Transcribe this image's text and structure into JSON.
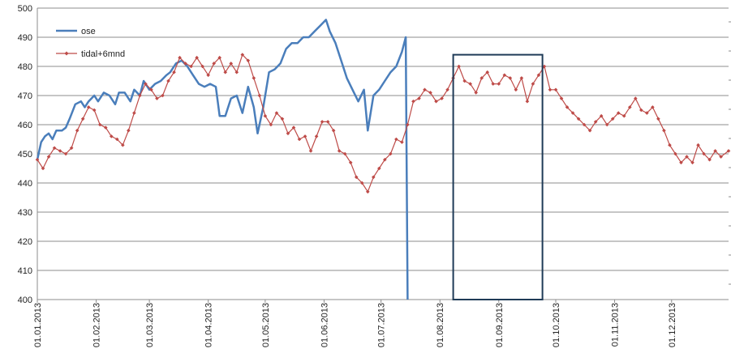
{
  "chart_data": {
    "type": "line",
    "title": "",
    "xlabel": "",
    "ylabel": "",
    "ylim": [
      400,
      500
    ],
    "yticks": [
      400,
      410,
      420,
      430,
      440,
      450,
      460,
      470,
      480,
      490,
      500
    ],
    "xlim": [
      "2013-01-01",
      "2013-12-31"
    ],
    "xtick_labels": [
      "01.01.2013",
      "01.02.2013",
      "01.03.2013",
      "01.04.2013",
      "01.05.2013",
      "01.06.2013",
      "01.07.2013",
      "01.08.2013",
      "01.09.2013",
      "01.10.2013",
      "01.11.2013",
      "01.12.2013"
    ],
    "xtick_dates": [
      "2013-01-01",
      "2013-02-01",
      "2013-03-01",
      "2013-04-01",
      "2013-05-01",
      "2013-06-01",
      "2013-07-01",
      "2013-08-01",
      "2013-09-01",
      "2013-10-01",
      "2013-11-01",
      "2013-12-01"
    ],
    "grid": "horizontal",
    "legend": "top-left",
    "highlight_box": {
      "x0": "2013-08-08",
      "x1": "2013-09-24",
      "y0": 400,
      "y1": 484
    },
    "series": [
      {
        "name": "ose",
        "color": "#4a7ebb",
        "marker": "none",
        "points": [
          [
            "2013-01-01",
            448
          ],
          [
            "2013-01-03",
            454
          ],
          [
            "2013-01-05",
            456
          ],
          [
            "2013-01-07",
            457
          ],
          [
            "2013-01-09",
            455
          ],
          [
            "2013-01-11",
            458
          ],
          [
            "2013-01-14",
            458
          ],
          [
            "2013-01-16",
            459
          ],
          [
            "2013-01-18",
            462
          ],
          [
            "2013-01-21",
            467
          ],
          [
            "2013-01-24",
            468
          ],
          [
            "2013-01-26",
            466
          ],
          [
            "2013-01-28",
            468
          ],
          [
            "2013-01-31",
            470
          ],
          [
            "2013-02-02",
            468
          ],
          [
            "2013-02-05",
            471
          ],
          [
            "2013-02-08",
            470
          ],
          [
            "2013-02-11",
            467
          ],
          [
            "2013-02-13",
            471
          ],
          [
            "2013-02-16",
            471
          ],
          [
            "2013-02-19",
            468
          ],
          [
            "2013-02-21",
            472
          ],
          [
            "2013-02-24",
            470
          ],
          [
            "2013-02-26",
            475
          ],
          [
            "2013-03-01",
            472
          ],
          [
            "2013-03-04",
            474
          ],
          [
            "2013-03-07",
            475
          ],
          [
            "2013-03-10",
            477
          ],
          [
            "2013-03-12",
            478
          ],
          [
            "2013-03-15",
            481
          ],
          [
            "2013-03-18",
            482
          ],
          [
            "2013-03-21",
            480
          ],
          [
            "2013-03-24",
            477
          ],
          [
            "2013-03-27",
            474
          ],
          [
            "2013-03-30",
            473
          ],
          [
            "2013-04-02",
            474
          ],
          [
            "2013-04-05",
            473
          ],
          [
            "2013-04-07",
            463
          ],
          [
            "2013-04-10",
            463
          ],
          [
            "2013-04-13",
            469
          ],
          [
            "2013-04-16",
            470
          ],
          [
            "2013-04-19",
            464
          ],
          [
            "2013-04-22",
            473
          ],
          [
            "2013-04-25",
            466
          ],
          [
            "2013-04-27",
            457
          ],
          [
            "2013-04-30",
            466
          ],
          [
            "2013-05-03",
            478
          ],
          [
            "2013-05-06",
            479
          ],
          [
            "2013-05-09",
            481
          ],
          [
            "2013-05-12",
            486
          ],
          [
            "2013-05-15",
            488
          ],
          [
            "2013-05-18",
            488
          ],
          [
            "2013-05-21",
            490
          ],
          [
            "2013-05-24",
            490
          ],
          [
            "2013-05-27",
            492
          ],
          [
            "2013-05-30",
            494
          ],
          [
            "2013-06-02",
            496
          ],
          [
            "2013-06-04",
            492
          ],
          [
            "2013-06-07",
            488
          ],
          [
            "2013-06-10",
            482
          ],
          [
            "2013-06-13",
            476
          ],
          [
            "2013-06-16",
            472
          ],
          [
            "2013-06-19",
            468
          ],
          [
            "2013-06-22",
            472
          ],
          [
            "2013-06-24",
            458
          ],
          [
            "2013-06-27",
            470
          ],
          [
            "2013-06-30",
            472
          ],
          [
            "2013-07-03",
            475
          ],
          [
            "2013-07-06",
            478
          ],
          [
            "2013-07-09",
            480
          ],
          [
            "2013-07-12",
            485
          ],
          [
            "2013-07-14",
            490
          ],
          [
            "2013-07-15",
            400
          ]
        ]
      },
      {
        "name": "tidal+6mnd",
        "color": "#be4b48",
        "marker": "diamond",
        "points": [
          [
            "2013-01-01",
            448
          ],
          [
            "2013-01-04",
            445
          ],
          [
            "2013-01-07",
            449
          ],
          [
            "2013-01-10",
            452
          ],
          [
            "2013-01-13",
            451
          ],
          [
            "2013-01-16",
            450
          ],
          [
            "2013-01-19",
            452
          ],
          [
            "2013-01-22",
            458
          ],
          [
            "2013-01-25",
            462
          ],
          [
            "2013-01-28",
            466
          ],
          [
            "2013-01-31",
            465
          ],
          [
            "2013-02-03",
            460
          ],
          [
            "2013-02-06",
            459
          ],
          [
            "2013-02-09",
            456
          ],
          [
            "2013-02-12",
            455
          ],
          [
            "2013-02-15",
            453
          ],
          [
            "2013-02-18",
            458
          ],
          [
            "2013-02-21",
            464
          ],
          [
            "2013-02-24",
            470
          ],
          [
            "2013-02-27",
            474
          ],
          [
            "2013-03-02",
            472
          ],
          [
            "2013-03-05",
            469
          ],
          [
            "2013-03-08",
            470
          ],
          [
            "2013-03-11",
            475
          ],
          [
            "2013-03-14",
            478
          ],
          [
            "2013-03-17",
            483
          ],
          [
            "2013-03-20",
            481
          ],
          [
            "2013-03-23",
            480
          ],
          [
            "2013-03-26",
            483
          ],
          [
            "2013-03-29",
            480
          ],
          [
            "2013-04-01",
            477
          ],
          [
            "2013-04-04",
            481
          ],
          [
            "2013-04-07",
            483
          ],
          [
            "2013-04-10",
            478
          ],
          [
            "2013-04-13",
            481
          ],
          [
            "2013-04-16",
            478
          ],
          [
            "2013-04-19",
            484
          ],
          [
            "2013-04-22",
            482
          ],
          [
            "2013-04-25",
            476
          ],
          [
            "2013-04-28",
            470
          ],
          [
            "2013-05-01",
            463
          ],
          [
            "2013-05-04",
            460
          ],
          [
            "2013-05-07",
            464
          ],
          [
            "2013-05-10",
            462
          ],
          [
            "2013-05-13",
            457
          ],
          [
            "2013-05-16",
            459
          ],
          [
            "2013-05-19",
            455
          ],
          [
            "2013-05-22",
            456
          ],
          [
            "2013-05-25",
            451
          ],
          [
            "2013-05-28",
            456
          ],
          [
            "2013-05-31",
            461
          ],
          [
            "2013-06-03",
            461
          ],
          [
            "2013-06-06",
            458
          ],
          [
            "2013-06-09",
            451
          ],
          [
            "2013-06-12",
            450
          ],
          [
            "2013-06-15",
            447
          ],
          [
            "2013-06-18",
            442
          ],
          [
            "2013-06-21",
            440
          ],
          [
            "2013-06-24",
            437
          ],
          [
            "2013-06-27",
            442
          ],
          [
            "2013-06-30",
            445
          ],
          [
            "2013-07-03",
            448
          ],
          [
            "2013-07-06",
            450
          ],
          [
            "2013-07-09",
            455
          ],
          [
            "2013-07-12",
            454
          ],
          [
            "2013-07-15",
            460
          ],
          [
            "2013-07-18",
            468
          ],
          [
            "2013-07-21",
            469
          ],
          [
            "2013-07-24",
            472
          ],
          [
            "2013-07-27",
            471
          ],
          [
            "2013-07-30",
            468
          ],
          [
            "2013-08-02",
            469
          ],
          [
            "2013-08-05",
            472
          ],
          [
            "2013-08-08",
            476
          ],
          [
            "2013-08-11",
            480
          ],
          [
            "2013-08-14",
            475
          ],
          [
            "2013-08-17",
            474
          ],
          [
            "2013-08-20",
            471
          ],
          [
            "2013-08-23",
            476
          ],
          [
            "2013-08-26",
            478
          ],
          [
            "2013-08-29",
            474
          ],
          [
            "2013-09-01",
            474
          ],
          [
            "2013-09-04",
            477
          ],
          [
            "2013-09-07",
            476
          ],
          [
            "2013-09-10",
            472
          ],
          [
            "2013-09-13",
            476
          ],
          [
            "2013-09-16",
            468
          ],
          [
            "2013-09-19",
            474
          ],
          [
            "2013-09-22",
            477
          ],
          [
            "2013-09-25",
            480
          ],
          [
            "2013-09-28",
            472
          ],
          [
            "2013-10-01",
            472
          ],
          [
            "2013-10-04",
            469
          ],
          [
            "2013-10-07",
            466
          ],
          [
            "2013-10-10",
            464
          ],
          [
            "2013-10-13",
            462
          ],
          [
            "2013-10-16",
            460
          ],
          [
            "2013-10-19",
            458
          ],
          [
            "2013-10-22",
            461
          ],
          [
            "2013-10-25",
            463
          ],
          [
            "2013-10-28",
            460
          ],
          [
            "2013-10-31",
            462
          ],
          [
            "2013-11-03",
            464
          ],
          [
            "2013-11-06",
            463
          ],
          [
            "2013-11-09",
            466
          ],
          [
            "2013-11-12",
            469
          ],
          [
            "2013-11-15",
            465
          ],
          [
            "2013-11-18",
            464
          ],
          [
            "2013-11-21",
            466
          ],
          [
            "2013-11-24",
            462
          ],
          [
            "2013-11-27",
            458
          ],
          [
            "2013-11-30",
            453
          ],
          [
            "2013-12-03",
            450
          ],
          [
            "2013-12-06",
            447
          ],
          [
            "2013-12-09",
            449
          ],
          [
            "2013-12-12",
            447
          ],
          [
            "2013-12-15",
            453
          ],
          [
            "2013-12-18",
            450
          ],
          [
            "2013-12-21",
            448
          ],
          [
            "2013-12-24",
            451
          ],
          [
            "2013-12-27",
            449
          ],
          [
            "2013-12-31",
            451
          ]
        ]
      }
    ]
  }
}
